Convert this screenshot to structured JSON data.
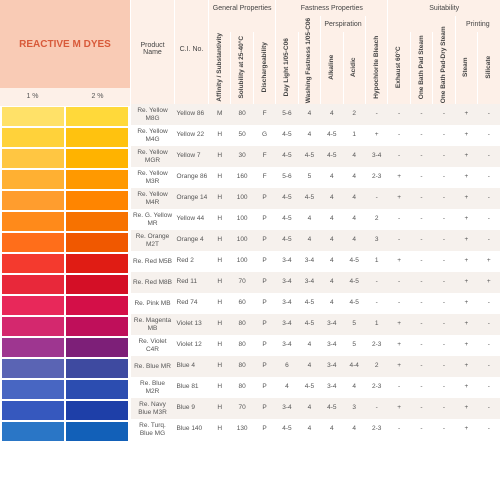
{
  "title": "REACTIVE\nM DYES",
  "pct_headers": [
    "1 %",
    "2 %"
  ],
  "column_groups": [
    {
      "label": "",
      "span": 2
    },
    {
      "label": "General Properties",
      "span": 3
    },
    {
      "label": "Fastness Properties",
      "span": 5
    },
    {
      "label": "Suitability",
      "span": 7
    }
  ],
  "sub_groups": {
    "perspiration": "Perspiration",
    "printing": "Printing"
  },
  "name_header": "Product Name",
  "ci_header": "C.I. No.",
  "rot_headers": [
    "Affinity / Substantivity",
    "Solubility at 25-40°C",
    "Dischargeability",
    "Day Light 1/05-C06",
    "Washing Fastness 1/05-C06",
    "Alkaline",
    "Acidic",
    "Hypochlorite Bleach",
    "Exhaust 60°C",
    "One Bath Pad Steam",
    "One Bath Pad-Dry Steam",
    "Steam",
    "Silicate"
  ],
  "rows": [
    {
      "swatches": [
        "#ffe168",
        "#ffd93a"
      ],
      "name": "Re. Yellow M8G",
      "ci": "Yellow 86",
      "v": [
        "M",
        "80",
        "F",
        "5-6",
        "4",
        "4",
        "2",
        "-",
        "-",
        "-",
        "-",
        "+",
        "-"
      ]
    },
    {
      "swatches": [
        "#ffd23a",
        "#ffc20f"
      ],
      "name": "Re. Yellow M4G",
      "ci": "Yellow 22",
      "v": [
        "H",
        "50",
        "G",
        "4-5",
        "4",
        "4-5",
        "1",
        "+",
        "-",
        "-",
        "-",
        "+",
        "-"
      ]
    },
    {
      "swatches": [
        "#ffc642",
        "#ffb300"
      ],
      "name": "Re. Yellow MGR",
      "ci": "Yellow 7",
      "v": [
        "H",
        "30",
        "F",
        "4-5",
        "4-5",
        "4-5",
        "4",
        "3-4",
        "-",
        "-",
        "-",
        "+",
        "-"
      ]
    },
    {
      "swatches": [
        "#ffb032",
        "#ff9900"
      ],
      "name": "Re. Yellow M3R",
      "ci": "Orange 86",
      "v": [
        "H",
        "160",
        "F",
        "5-6",
        "5",
        "4",
        "4",
        "2-3",
        "+",
        "-",
        "-",
        "+",
        "-"
      ]
    },
    {
      "swatches": [
        "#ff9d2e",
        "#ff8500"
      ],
      "name": "Re. Yellow M4R",
      "ci": "Orange 14",
      "v": [
        "H",
        "100",
        "P",
        "4-5",
        "4-5",
        "4",
        "4",
        "-",
        "+",
        "-",
        "-",
        "+",
        "-"
      ]
    },
    {
      "swatches": [
        "#ff8a1a",
        "#f77200"
      ],
      "name": "Re. G. Yellow MR",
      "ci": "Yellow 44",
      "v": [
        "H",
        "100",
        "P",
        "4-5",
        "4",
        "4",
        "4",
        "2",
        "-",
        "-",
        "-",
        "+",
        "-"
      ]
    },
    {
      "swatches": [
        "#ff6e1a",
        "#f05800"
      ],
      "name": "Re. Orange M2T",
      "ci": "Orange 4",
      "v": [
        "H",
        "100",
        "P",
        "4-5",
        "4",
        "4",
        "4",
        "3",
        "-",
        "-",
        "-",
        "+",
        "-"
      ]
    },
    {
      "swatches": [
        "#f43a2e",
        "#e01c14"
      ],
      "name": "Re. Red M5B",
      "ci": "Red 2",
      "v": [
        "H",
        "100",
        "P",
        "3-4",
        "3-4",
        "4",
        "4-5",
        "1",
        "+",
        "-",
        "-",
        "+",
        "+"
      ]
    },
    {
      "swatches": [
        "#e8283a",
        "#d40f26"
      ],
      "name": "Re. Red M8B",
      "ci": "Red 11",
      "v": [
        "H",
        "70",
        "P",
        "3-4",
        "3-4",
        "4",
        "4-5",
        "-",
        "-",
        "-",
        "-",
        "+",
        "+"
      ]
    },
    {
      "swatches": [
        "#e8285a",
        "#d40f48"
      ],
      "name": "Re. Pink MB",
      "ci": "Red 74",
      "v": [
        "H",
        "60",
        "P",
        "3-4",
        "4-5",
        "4",
        "4-5",
        "-",
        "-",
        "-",
        "-",
        "+",
        "-"
      ]
    },
    {
      "swatches": [
        "#d4286e",
        "#bf0f5a"
      ],
      "name": "Re. Magenta MB",
      "ci": "Violet 13",
      "v": [
        "H",
        "80",
        "P",
        "3-4",
        "4-5",
        "3-4",
        "5",
        "1",
        "+",
        "-",
        "-",
        "+",
        "-"
      ]
    },
    {
      "swatches": [
        "#9e3690",
        "#7d1f78"
      ],
      "name": "Re. Violet C4R",
      "ci": "Violet 12",
      "v": [
        "H",
        "80",
        "P",
        "3-4",
        "4",
        "3-4",
        "5",
        "2-3",
        "+",
        "-",
        "-",
        "+",
        "-"
      ]
    },
    {
      "swatches": [
        "#5a64b4",
        "#3e4aa0"
      ],
      "name": "Re. Blue MR",
      "ci": "Blue 4",
      "v": [
        "H",
        "80",
        "P",
        "6",
        "4",
        "3-4",
        "4-4",
        "2",
        "+",
        "-",
        "-",
        "+",
        "-"
      ]
    },
    {
      "swatches": [
        "#4866c2",
        "#2c4db0"
      ],
      "name": "Re. Blue M2R",
      "ci": "Blue 81",
      "v": [
        "H",
        "80",
        "P",
        "4",
        "4-5",
        "3-4",
        "4",
        "2-3",
        "-",
        "-",
        "-",
        "+",
        "-"
      ]
    },
    {
      "swatches": [
        "#3658be",
        "#1e3fa8"
      ],
      "name": "Re. Navy Blue M3R",
      "ci": "Blue 9",
      "v": [
        "H",
        "70",
        "P",
        "3-4",
        "4",
        "4-5",
        "3",
        "-",
        "+",
        "-",
        "-",
        "+",
        "-"
      ]
    },
    {
      "swatches": [
        "#2a76c6",
        "#1260b8"
      ],
      "name": "Re. Turq. Blue MG",
      "ci": "Blue 140",
      "v": [
        "H",
        "130",
        "P",
        "4-5",
        "4",
        "4",
        "4",
        "2-3",
        "-",
        "-",
        "-",
        "+",
        "-"
      ]
    }
  ]
}
